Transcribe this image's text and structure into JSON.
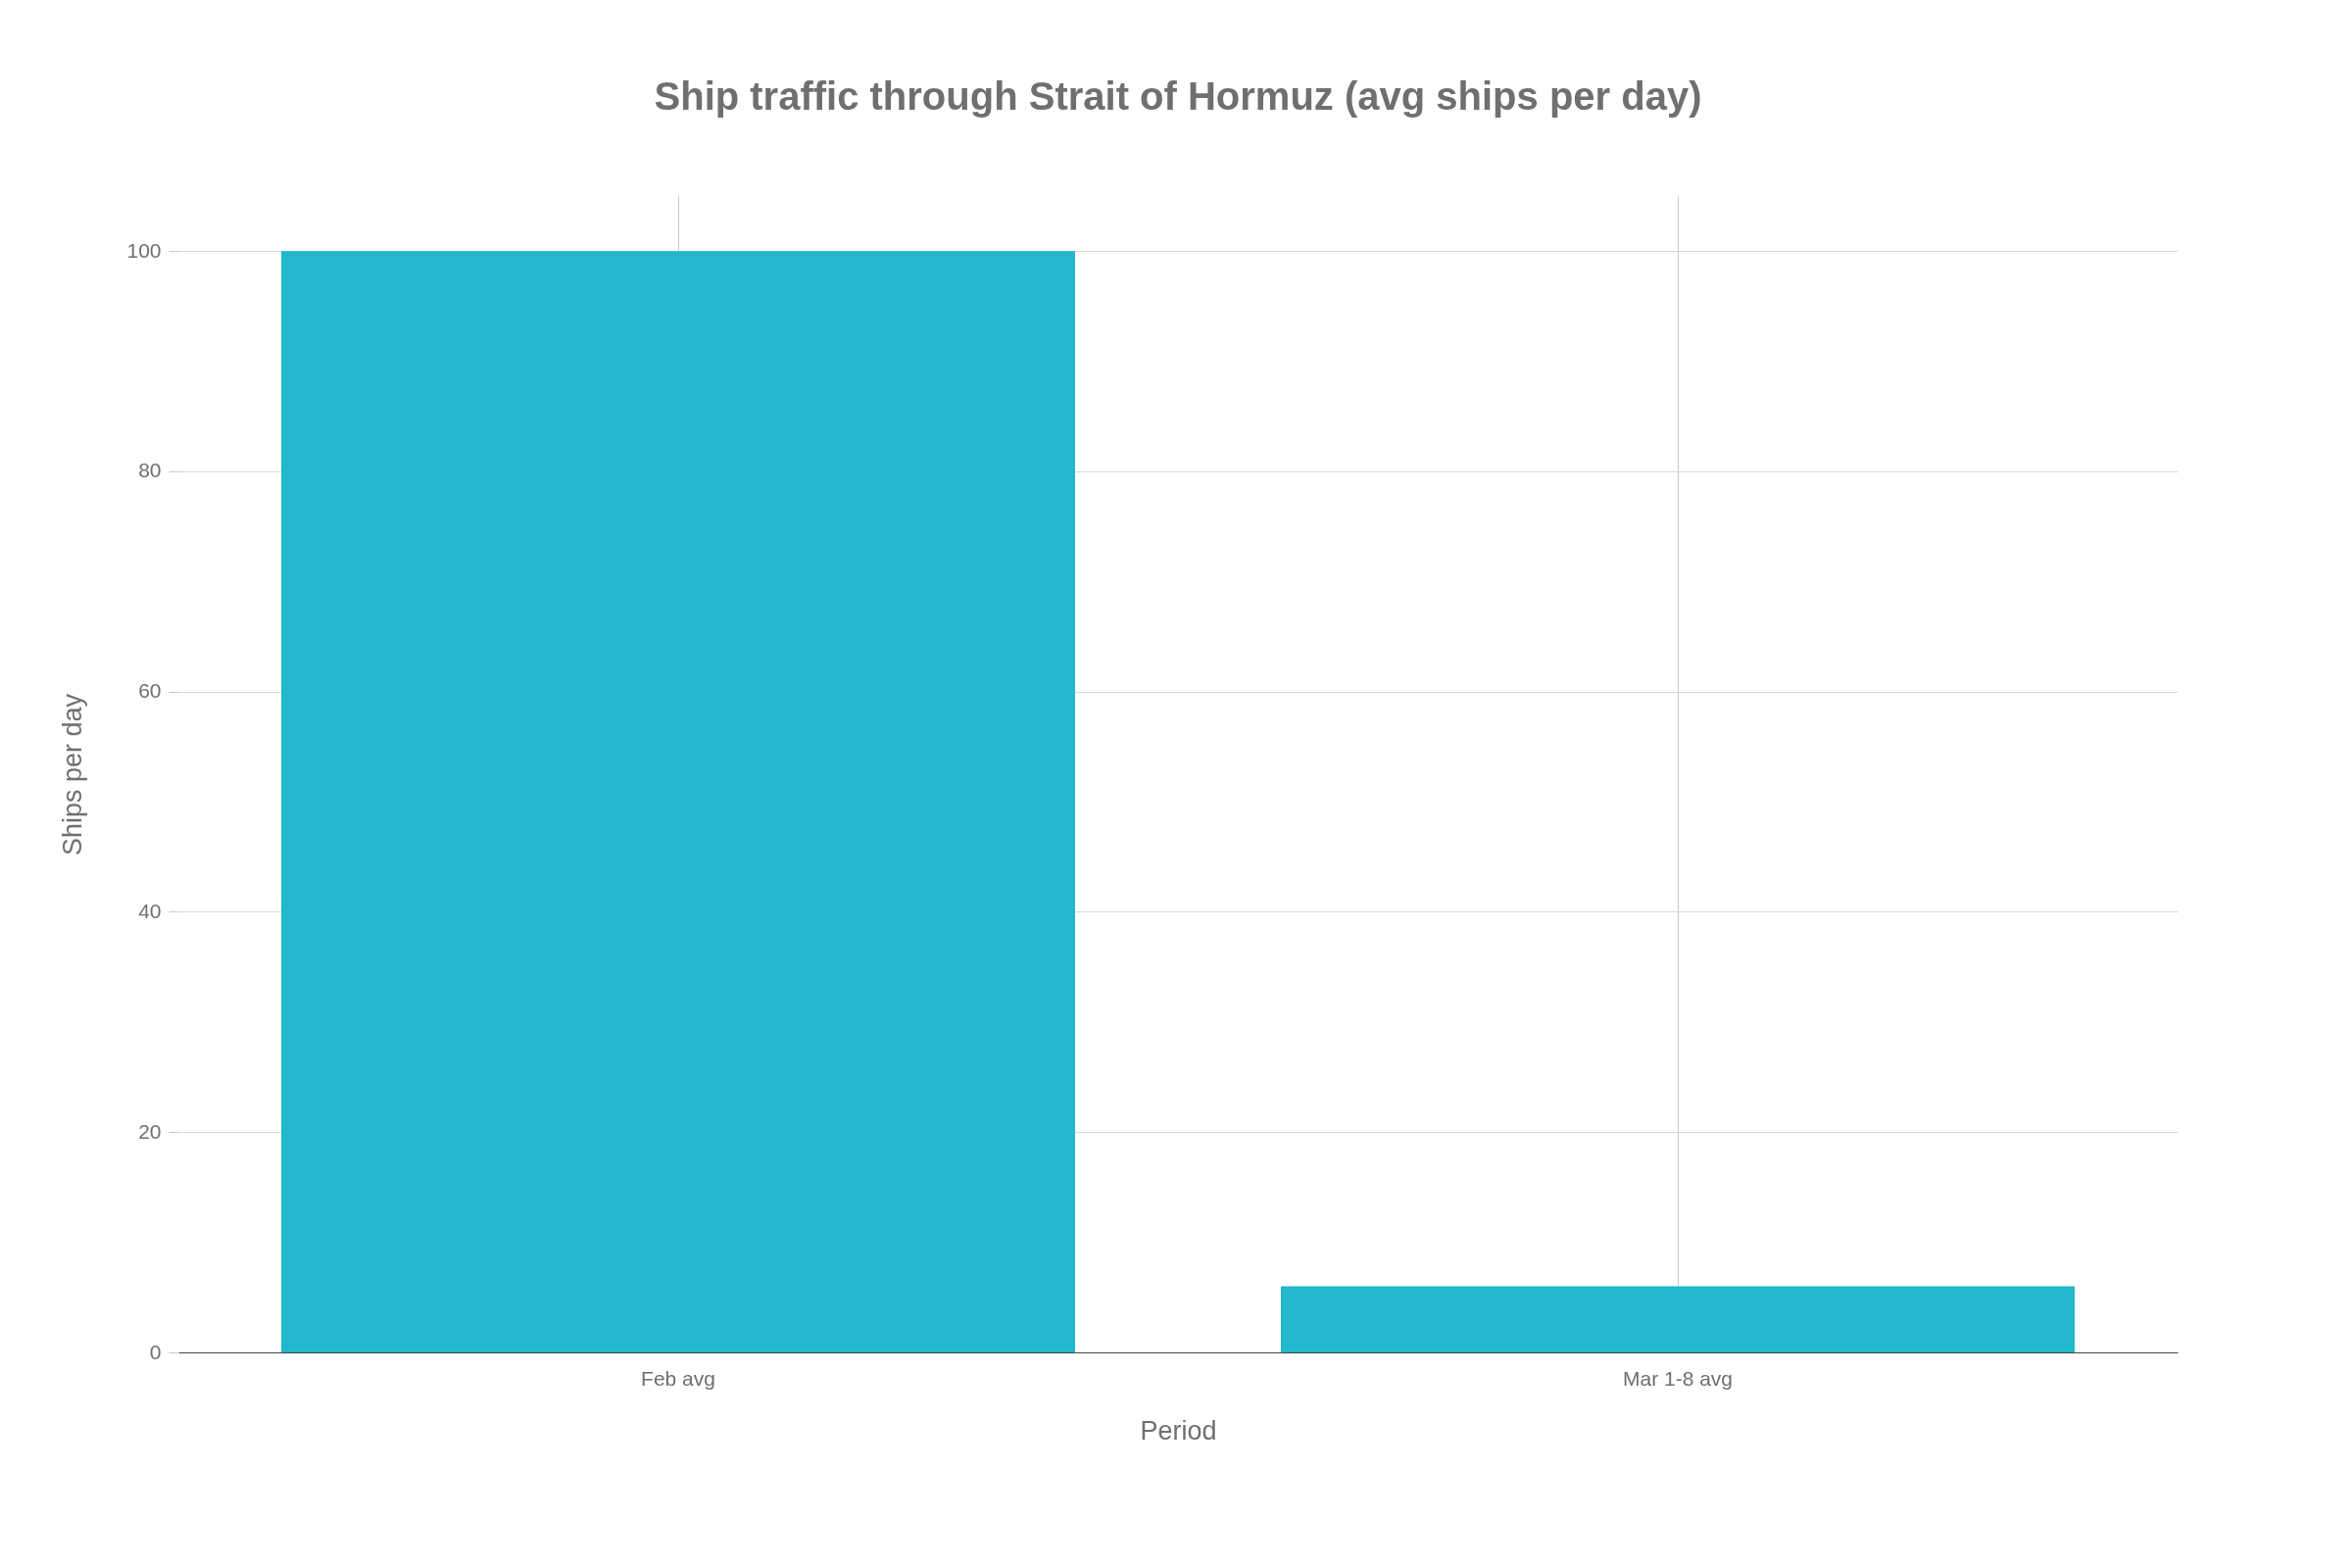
{
  "chart_data": {
    "type": "bar",
    "title": "Ship traffic through Strait of Hormuz (avg ships per day)",
    "xlabel": "Period",
    "ylabel": "Ships per day",
    "categories": [
      "Feb avg",
      "Mar 1-8 avg"
    ],
    "series": [
      {
        "color": "#21b7cc",
        "values": [
          100,
          6
        ]
      }
    ],
    "ylim": [
      0,
      105
    ],
    "yticks": [
      0,
      20,
      40,
      60,
      80,
      100
    ],
    "grid": true
  }
}
